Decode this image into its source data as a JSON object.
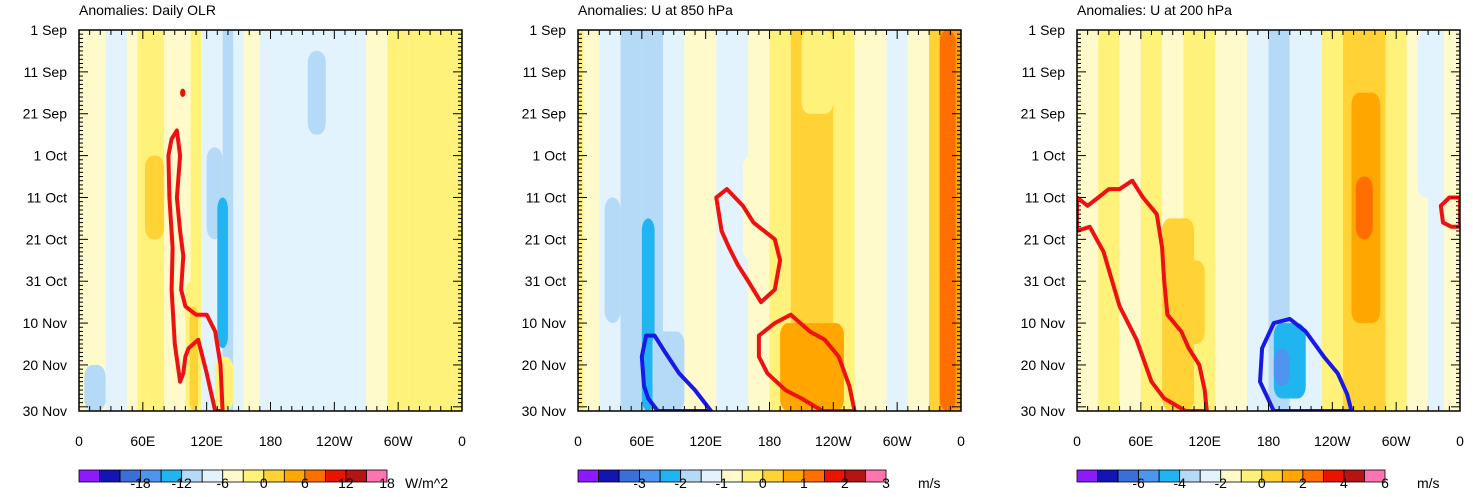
{
  "figure": {
    "description_domain": "Hovmoller anomaly diagrams"
  },
  "colors": {
    "scale": [
      "#8c1aff",
      "#1414b4",
      "#3a6fd9",
      "#4f95ef",
      "#20b4f0",
      "#b4daf7",
      "#e3f3fe",
      "#fffacb",
      "#fff27a",
      "#ffd236",
      "#ffa600",
      "#ff6f00",
      "#e81400",
      "#b41414",
      "#ff74b0"
    ],
    "red_contour": "#ee1111",
    "blue_contour": "#1818e8"
  },
  "chart_data": [
    {
      "type": "heatmap",
      "title": "Anomalies: Daily OLR",
      "xlabel": "",
      "ylabel": "",
      "x_ticks": [
        "0",
        "60E",
        "120E",
        "180",
        "120W",
        "60W",
        "0"
      ],
      "y_ticks": [
        "1 Sep",
        "11 Sep",
        "21 Sep",
        "1 Oct",
        "11 Oct",
        "21 Oct",
        "31 Oct",
        "10 Nov",
        "20 Nov",
        "30 Nov"
      ],
      "colorbar": {
        "labels": [
          "-18",
          "-12",
          "-6",
          "0",
          "6",
          "12",
          "18"
        ],
        "units": "W/m^2"
      },
      "bands": [
        {
          "lon": [
            0,
            25
          ],
          "level": 0
        },
        {
          "lon": [
            25,
            35
          ],
          "level": -1
        },
        {
          "lon": [
            35,
            45
          ],
          "level": -1
        },
        {
          "lon": [
            45,
            55
          ],
          "level": 0
        },
        {
          "lon": [
            55,
            65
          ],
          "level": 1
        },
        {
          "lon": [
            65,
            80
          ],
          "level": 1
        },
        {
          "lon": [
            80,
            90
          ],
          "level": 0
        },
        {
          "lon": [
            90,
            105
          ],
          "level": 0
        },
        {
          "lon": [
            105,
            115
          ],
          "level": 1
        },
        {
          "lon": [
            115,
            125
          ],
          "level": -1
        },
        {
          "lon": [
            125,
            135
          ],
          "level": -1
        },
        {
          "lon": [
            135,
            145
          ],
          "level": -2
        },
        {
          "lon": [
            145,
            155
          ],
          "level": -1
        },
        {
          "lon": [
            155,
            170
          ],
          "level": 0
        },
        {
          "lon": [
            170,
            200
          ],
          "level": -1
        },
        {
          "lon": [
            200,
            230
          ],
          "level": -1
        },
        {
          "lon": [
            230,
            250
          ],
          "level": -1
        },
        {
          "lon": [
            250,
            270
          ],
          "level": -1
        },
        {
          "lon": [
            270,
            290
          ],
          "level": 0
        },
        {
          "lon": [
            290,
            310
          ],
          "level": 1
        },
        {
          "lon": [
            310,
            360
          ],
          "level": 1
        }
      ],
      "blobs": [
        {
          "lon": [
            60,
            72
          ],
          "days": [
            0,
            30
          ],
          "level": 1
        },
        {
          "lon": [
            62,
            80
          ],
          "days": [
            30,
            50
          ],
          "level": 2
        },
        {
          "lon": [
            100,
            112
          ],
          "days": [
            60,
            91
          ],
          "level": 1
        },
        {
          "lon": [
            104,
            112
          ],
          "days": [
            66,
            91
          ],
          "level": 2
        },
        {
          "lon": [
            120,
            135
          ],
          "days": [
            28,
            50
          ],
          "level": -2
        },
        {
          "lon": [
            130,
            140
          ],
          "days": [
            40,
            76
          ],
          "level": -3
        },
        {
          "lon": [
            128,
            145
          ],
          "days": [
            78,
            91
          ],
          "level": 1
        },
        {
          "lon": [
            215,
            232
          ],
          "days": [
            5,
            25
          ],
          "level": -2
        },
        {
          "lon": [
            5,
            25
          ],
          "days": [
            80,
            91
          ],
          "level": -2
        },
        {
          "lon": [
            95,
            100
          ],
          "days": [
            14,
            16
          ],
          "level": 5
        }
      ],
      "contours": [
        {
          "color": "red",
          "points": [
            [
              87,
              26
            ],
            [
              92,
              24
            ],
            [
              95,
              30
            ],
            [
              92,
              40
            ],
            [
              95,
              48
            ],
            [
              98,
              54
            ],
            [
              96,
              62
            ],
            [
              100,
              66
            ],
            [
              110,
              68
            ],
            [
              120,
              68
            ],
            [
              128,
              72
            ],
            [
              133,
              80
            ],
            [
              135,
              91
            ],
            [
              128,
              91
            ],
            [
              120,
              82
            ],
            [
              112,
              74
            ],
            [
              103,
              76
            ],
            [
              100,
              78
            ],
            [
              98,
              82
            ],
            [
              95,
              84
            ],
            [
              90,
              75
            ],
            [
              87,
              62
            ],
            [
              88,
              52
            ],
            [
              85,
              40
            ],
            [
              84,
              30
            ]
          ]
        }
      ]
    },
    {
      "type": "heatmap",
      "title": "Anomalies: U at 850 hPa",
      "xlabel": "",
      "ylabel": "",
      "x_ticks": [
        "0",
        "60E",
        "120E",
        "180",
        "120W",
        "60W",
        "0"
      ],
      "y_ticks": [
        "1 Sep",
        "11 Sep",
        "21 Sep",
        "1 Oct",
        "11 Oct",
        "21 Oct",
        "31 Oct",
        "10 Nov",
        "20 Nov",
        "30 Nov"
      ],
      "colorbar": {
        "labels": [
          "-3",
          "-2",
          "-1",
          "0",
          "1",
          "2",
          "3"
        ],
        "units": "m/s"
      },
      "bands": [
        {
          "lon": [
            0,
            5
          ],
          "level": 1
        },
        {
          "lon": [
            5,
            20
          ],
          "level": 0
        },
        {
          "lon": [
            20,
            40
          ],
          "level": -1
        },
        {
          "lon": [
            40,
            60
          ],
          "level": -2
        },
        {
          "lon": [
            60,
            80
          ],
          "level": -2
        },
        {
          "lon": [
            80,
            100
          ],
          "level": -1
        },
        {
          "lon": [
            100,
            130
          ],
          "level": 0
        },
        {
          "lon": [
            130,
            160
          ],
          "level": -1
        },
        {
          "lon": [
            160,
            180
          ],
          "level": 0
        },
        {
          "lon": [
            180,
            200
          ],
          "level": 1
        },
        {
          "lon": [
            200,
            240
          ],
          "level": 2
        },
        {
          "lon": [
            240,
            260
          ],
          "level": 1
        },
        {
          "lon": [
            260,
            290
          ],
          "level": 0
        },
        {
          "lon": [
            290,
            310
          ],
          "level": -1
        },
        {
          "lon": [
            310,
            330
          ],
          "level": 0
        },
        {
          "lon": [
            330,
            340
          ],
          "level": 2
        },
        {
          "lon": [
            340,
            360
          ],
          "level": 3
        }
      ],
      "blobs": [
        {
          "lon": [
            60,
            72
          ],
          "days": [
            45,
            91
          ],
          "level": -3
        },
        {
          "lon": [
            70,
            100
          ],
          "days": [
            72,
            91
          ],
          "level": -2
        },
        {
          "lon": [
            190,
            250
          ],
          "days": [
            70,
            91
          ],
          "level": 3
        },
        {
          "lon": [
            205,
            240
          ],
          "days": [
            80,
            91
          ],
          "level": 3
        },
        {
          "lon": [
            340,
            355
          ],
          "days": [
            0,
            91
          ],
          "level": 4
        },
        {
          "lon": [
            210,
            240
          ],
          "days": [
            0,
            20
          ],
          "level": 1
        },
        {
          "lon": [
            155,
            170
          ],
          "days": [
            30,
            55
          ],
          "level": 0
        },
        {
          "lon": [
            25,
            40
          ],
          "days": [
            40,
            70
          ],
          "level": -2
        }
      ],
      "contours": [
        {
          "color": "red",
          "points": [
            [
              130,
              40
            ],
            [
              140,
              38
            ],
            [
              155,
              42
            ],
            [
              165,
              46
            ],
            [
              175,
              48
            ],
            [
              185,
              50
            ],
            [
              190,
              55
            ],
            [
              185,
              62
            ],
            [
              172,
              65
            ],
            [
              160,
              60
            ],
            [
              150,
              56
            ],
            [
              142,
              52
            ],
            [
              135,
              48
            ]
          ]
        },
        {
          "color": "red",
          "points": [
            [
              170,
              73
            ],
            [
              185,
              70
            ],
            [
              200,
              68
            ],
            [
              218,
              72
            ],
            [
              232,
              74
            ],
            [
              245,
              78
            ],
            [
              255,
              85
            ],
            [
              260,
              91
            ],
            [
              230,
              91
            ],
            [
              210,
              88
            ],
            [
              195,
              86
            ],
            [
              178,
              82
            ],
            [
              170,
              78
            ]
          ]
        },
        {
          "color": "blue",
          "points": [
            [
              62,
              85
            ],
            [
              60,
              78
            ],
            [
              64,
              73
            ],
            [
              72,
              73
            ],
            [
              82,
              77
            ],
            [
              95,
              82
            ],
            [
              110,
              86
            ],
            [
              125,
              91
            ],
            [
              75,
              91
            ],
            [
              66,
              88
            ]
          ]
        }
      ]
    },
    {
      "type": "heatmap",
      "title": "Anomalies: U at 200 hPa",
      "xlabel": "",
      "ylabel": "",
      "x_ticks": [
        "0",
        "60E",
        "120E",
        "180",
        "120W",
        "60W",
        "0"
      ],
      "y_ticks": [
        "1 Sep",
        "11 Sep",
        "21 Sep",
        "1 Oct",
        "11 Oct",
        "21 Oct",
        "31 Oct",
        "10 Nov",
        "20 Nov",
        "30 Nov"
      ],
      "colorbar": {
        "labels": [
          "-6",
          "-4",
          "-2",
          "0",
          "2",
          "4",
          "6"
        ],
        "units": "m/s"
      },
      "bands": [
        {
          "lon": [
            0,
            20
          ],
          "level": 0
        },
        {
          "lon": [
            20,
            40
          ],
          "level": 1
        },
        {
          "lon": [
            40,
            60
          ],
          "level": 0
        },
        {
          "lon": [
            60,
            80
          ],
          "level": 1
        },
        {
          "lon": [
            80,
            100
          ],
          "level": 0
        },
        {
          "lon": [
            100,
            130
          ],
          "level": 1
        },
        {
          "lon": [
            130,
            160
          ],
          "level": 0
        },
        {
          "lon": [
            160,
            180
          ],
          "level": -1
        },
        {
          "lon": [
            180,
            200
          ],
          "level": -2
        },
        {
          "lon": [
            200,
            230
          ],
          "level": -1
        },
        {
          "lon": [
            230,
            250
          ],
          "level": 1
        },
        {
          "lon": [
            250,
            290
          ],
          "level": 2
        },
        {
          "lon": [
            290,
            310
          ],
          "level": 1
        },
        {
          "lon": [
            310,
            330
          ],
          "level": 0
        },
        {
          "lon": [
            330,
            345
          ],
          "level": -1
        },
        {
          "lon": [
            345,
            360
          ],
          "level": 0
        }
      ],
      "blobs": [
        {
          "lon": [
            258,
            285
          ],
          "days": [
            15,
            70
          ],
          "level": 3
        },
        {
          "lon": [
            262,
            278
          ],
          "days": [
            35,
            50
          ],
          "level": 4
        },
        {
          "lon": [
            185,
            215
          ],
          "days": [
            70,
            88
          ],
          "level": -3
        },
        {
          "lon": [
            185,
            200
          ],
          "days": [
            76,
            85
          ],
          "level": -4
        },
        {
          "lon": [
            80,
            110
          ],
          "days": [
            45,
            91
          ],
          "level": 2
        },
        {
          "lon": [
            320,
            340
          ],
          "days": [
            0,
            40
          ],
          "level": -1
        },
        {
          "lon": [
            100,
            120
          ],
          "days": [
            55,
            75
          ],
          "level": 2
        }
      ],
      "contours": [
        {
          "color": "red",
          "points": [
            [
              0,
              40
            ],
            [
              10,
              42
            ],
            [
              20,
              40
            ],
            [
              30,
              38
            ],
            [
              40,
              38
            ],
            [
              52,
              36
            ],
            [
              62,
              40
            ],
            [
              75,
              44
            ],
            [
              80,
              52
            ],
            [
              82,
              60
            ],
            [
              85,
              68
            ],
            [
              98,
              72
            ],
            [
              105,
              76
            ],
            [
              115,
              80
            ],
            [
              120,
              86
            ],
            [
              122,
              91
            ],
            [
              102,
              91
            ],
            [
              82,
              88
            ],
            [
              70,
              84
            ],
            [
              56,
              74
            ],
            [
              40,
              66
            ],
            [
              25,
              53
            ],
            [
              12,
              47
            ],
            [
              0,
              48
            ]
          ]
        },
        {
          "color": "red",
          "points": [
            [
              360,
              40
            ],
            [
              350,
              40
            ],
            [
              342,
              42
            ],
            [
              344,
              46
            ],
            [
              352,
              47
            ],
            [
              360,
              47
            ]
          ]
        },
        {
          "color": "blue",
          "points": [
            [
              185,
              91
            ],
            [
              172,
              84
            ],
            [
              174,
              76
            ],
            [
              185,
              70
            ],
            [
              200,
              69
            ],
            [
              215,
              72
            ],
            [
              232,
              78
            ],
            [
              245,
              82
            ],
            [
              254,
              87
            ],
            [
              258,
              91
            ],
            [
              200,
              91
            ]
          ]
        }
      ]
    }
  ]
}
